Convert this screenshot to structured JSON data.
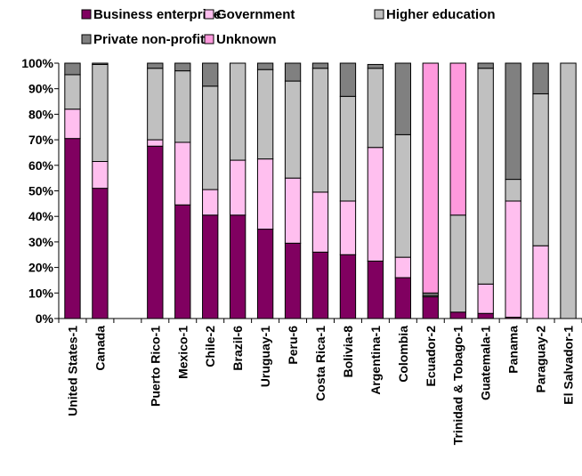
{
  "chart_data": {
    "type": "bar",
    "stacked": true,
    "percent": true,
    "title": "",
    "xlabel": "",
    "ylabel": "",
    "ylim": [
      0,
      100
    ],
    "yticks": [
      "0%",
      "10%",
      "20%",
      "30%",
      "40%",
      "50%",
      "60%",
      "70%",
      "80%",
      "90%",
      "100%"
    ],
    "grid": false,
    "legend_position": "top",
    "categories": [
      "United States-1",
      "Canada",
      "",
      "Puerto Rico-1",
      "Mexico-1",
      "Chile-2",
      "Brazil-6",
      "Uruguay-1",
      "Peru-6",
      "Costa Rica-1",
      "Bolivia-8",
      "Argentina-1",
      "Colombia",
      "Ecuador-2",
      "Trinidad & Tobago-1",
      "Guatemala-1",
      "Panama",
      "Paraguay-2",
      "El Salvador-1"
    ],
    "series": [
      {
        "name": "Business enterprise",
        "color": "#800060",
        "values": [
          70.5,
          51,
          0,
          67.5,
          44.5,
          40.5,
          40.5,
          35,
          29.5,
          26,
          25,
          22.5,
          16,
          8.5,
          2.5,
          2,
          0.5,
          0,
          0
        ]
      },
      {
        "name": "Government",
        "color": "#ffbfef",
        "values": [
          11.5,
          10.5,
          0,
          2.5,
          24.5,
          10,
          21.5,
          27.5,
          25.5,
          23.5,
          21,
          44.5,
          8,
          0,
          0,
          11.5,
          45.5,
          28.5,
          0
        ]
      },
      {
        "name": "Higher education",
        "color": "#c0c0c0",
        "values": [
          13.5,
          38,
          0,
          28,
          28,
          40.5,
          38,
          35,
          38,
          48.5,
          41,
          31,
          48,
          0.5,
          38,
          84.5,
          8.5,
          59.5,
          100
        ]
      },
      {
        "name": "Private non-profit",
        "color": "#808080",
        "values": [
          4.5,
          0.5,
          0,
          2,
          3,
          9,
          0,
          2.5,
          7,
          2,
          13,
          1.5,
          28,
          1,
          0,
          2,
          45.5,
          12,
          0
        ]
      },
      {
        "name": "Unknown",
        "color": "#ff99dd",
        "values": [
          0,
          0,
          0,
          0,
          0,
          0,
          0,
          0,
          0,
          0,
          0,
          0,
          0,
          90,
          59.5,
          0,
          0,
          0,
          0
        ]
      }
    ]
  }
}
